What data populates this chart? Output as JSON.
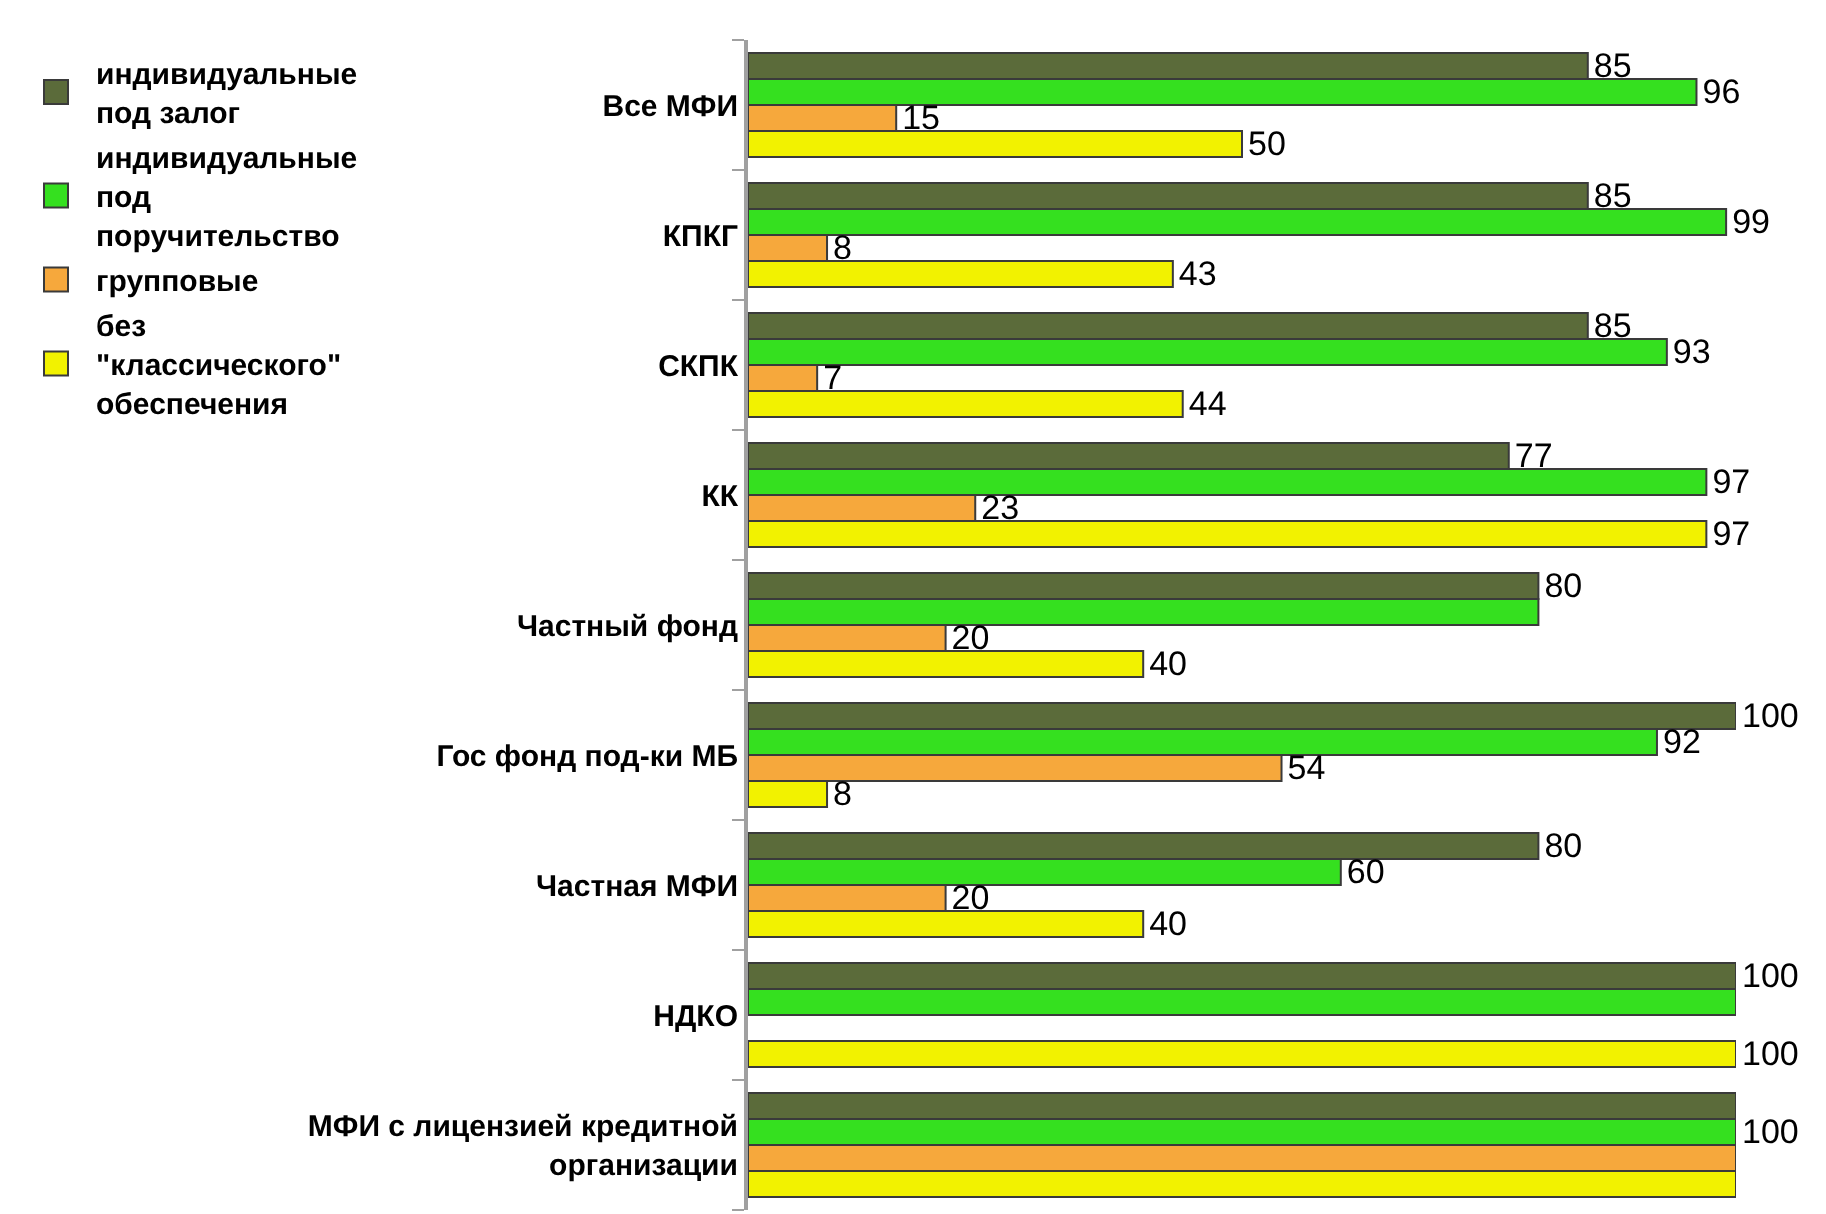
{
  "chart_data": {
    "type": "bar",
    "orientation": "horizontal",
    "categories": [
      "Все МФИ",
      "КПКГ",
      "СКПК",
      "КК",
      "Частный фонд",
      "Гос фонд под-ки МБ",
      "Частная МФИ",
      "НДКО",
      "МФИ с лицензией кредитной организации"
    ],
    "series": [
      {
        "name": "индивидуальные под залог",
        "color": "#5b6b3a",
        "values": [
          85,
          85,
          85,
          77,
          80,
          100,
          80,
          100,
          100
        ],
        "value_labels": [
          "85",
          "85",
          "85",
          "77",
          "80",
          "100",
          "80",
          "100",
          null
        ]
      },
      {
        "name": "индивидуальные под поручительство",
        "color": "#35e01f",
        "values": [
          96,
          99,
          93,
          97,
          80,
          92,
          60,
          100,
          100
        ],
        "value_labels": [
          "96",
          "99",
          "93",
          "97",
          null,
          "92",
          "60",
          null,
          "100"
        ]
      },
      {
        "name": "групповые",
        "color": "#f6a83c",
        "values": [
          15,
          8,
          7,
          23,
          20,
          54,
          20,
          null,
          100
        ],
        "value_labels": [
          "15",
          "8",
          "7",
          "23",
          "20",
          "54",
          "20",
          null,
          null
        ]
      },
      {
        "name": "без \"классического\" обеспечения",
        "color": "#f2f200",
        "values": [
          50,
          43,
          44,
          97,
          40,
          8,
          40,
          100,
          100
        ],
        "value_labels": [
          "50",
          "43",
          "44",
          "97",
          "40",
          "8",
          "40",
          "100",
          null
        ]
      }
    ],
    "xlim": [
      0,
      100
    ],
    "tick_labels": "y",
    "legend": "left"
  }
}
